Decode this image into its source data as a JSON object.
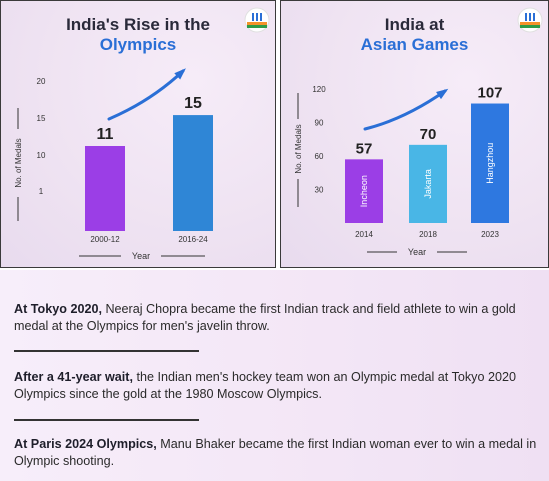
{
  "charts": {
    "olympics": {
      "title_line1": "India's Rise in the",
      "title_line2": "Olympics",
      "accent": "#2a6fd6"
    },
    "asian": {
      "title_line1": "India at",
      "title_line2": "Asian Games",
      "accent": "#2a6fd6"
    }
  },
  "chart_data": [
    {
      "type": "bar",
      "title": "India's Rise in the Olympics",
      "categories": [
        "2000-12",
        "2016-24"
      ],
      "values": [
        11,
        15
      ],
      "colors": [
        "#9b3ee6",
        "#2f86d6"
      ],
      "xlabel": "Year",
      "ylabel": "No. of Medals",
      "yticks": [
        "1",
        "10",
        "15",
        "20"
      ],
      "grid": false,
      "trend_arrow": true
    },
    {
      "type": "bar",
      "title": "India at Asian Games",
      "categories": [
        "2014",
        "2018",
        "2023"
      ],
      "values": [
        57,
        70,
        107
      ],
      "bar_labels": [
        "Incheon",
        "Jakarta",
        "Hangzhou"
      ],
      "colors": [
        "#9b3ee6",
        "#49b6e6",
        "#2e78e0"
      ],
      "xlabel": "Year",
      "ylabel": "No. of Medals",
      "yticks": [
        30,
        60,
        90,
        120
      ],
      "ylim": [
        0,
        120
      ],
      "grid": false,
      "trend_arrow": true
    }
  ],
  "facts": [
    {
      "bold": "At Tokyo 2020,",
      "text": " Neeraj Chopra became the first Indian track and field athlete to win a gold medal at the Olympics for men's javelin throw."
    },
    {
      "bold": "After a 41-year wait,",
      "text": " the Indian men's hockey team won an Olympic medal at Tokyo 2020 Olympics since the gold at the 1980 Moscow Olympics."
    },
    {
      "bold": "At Paris 2024 Olympics,",
      "text": " Manu Bhaker became the first Indian woman ever to win a medal in Olympic shooting."
    }
  ]
}
